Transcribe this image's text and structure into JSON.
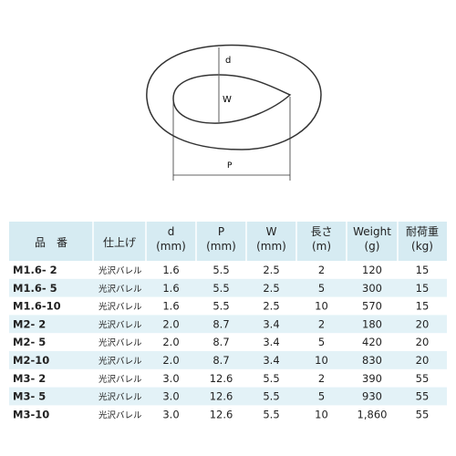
{
  "diagram": {
    "labels": {
      "d": "d",
      "w": "W",
      "p": "P"
    }
  },
  "table": {
    "header": [
      [
        "品　番"
      ],
      [
        "仕上げ"
      ],
      [
        "d",
        "(mm)"
      ],
      [
        "P",
        "(mm)"
      ],
      [
        "W",
        "(mm)"
      ],
      [
        "長さ",
        "(m)"
      ],
      [
        "Weight",
        "(g)"
      ],
      [
        "耐荷重",
        "(kg)"
      ]
    ],
    "rows": [
      [
        "M1.6- 2",
        "光沢バレル",
        "1.6",
        "5.5",
        "2.5",
        "2",
        "120",
        "15"
      ],
      [
        "M1.6- 5",
        "光沢バレル",
        "1.6",
        "5.5",
        "2.5",
        "5",
        "300",
        "15"
      ],
      [
        "M1.6-10",
        "光沢バレル",
        "1.6",
        "5.5",
        "2.5",
        "10",
        "570",
        "15"
      ],
      [
        "M2- 2",
        "光沢バレル",
        "2.0",
        "8.7",
        "3.4",
        "2",
        "180",
        "20"
      ],
      [
        "M2- 5",
        "光沢バレル",
        "2.0",
        "8.7",
        "3.4",
        "5",
        "420",
        "20"
      ],
      [
        "M2-10",
        "光沢バレル",
        "2.0",
        "8.7",
        "3.4",
        "10",
        "830",
        "20"
      ],
      [
        "M3- 2",
        "光沢バレル",
        "3.0",
        "12.6",
        "5.5",
        "2",
        "390",
        "55"
      ],
      [
        "M3- 5",
        "光沢バレル",
        "3.0",
        "12.6",
        "5.5",
        "5",
        "930",
        "55"
      ],
      [
        "M3-10",
        "光沢バレル",
        "3.0",
        "12.6",
        "5.5",
        "10",
        "1,860",
        "55"
      ]
    ]
  }
}
